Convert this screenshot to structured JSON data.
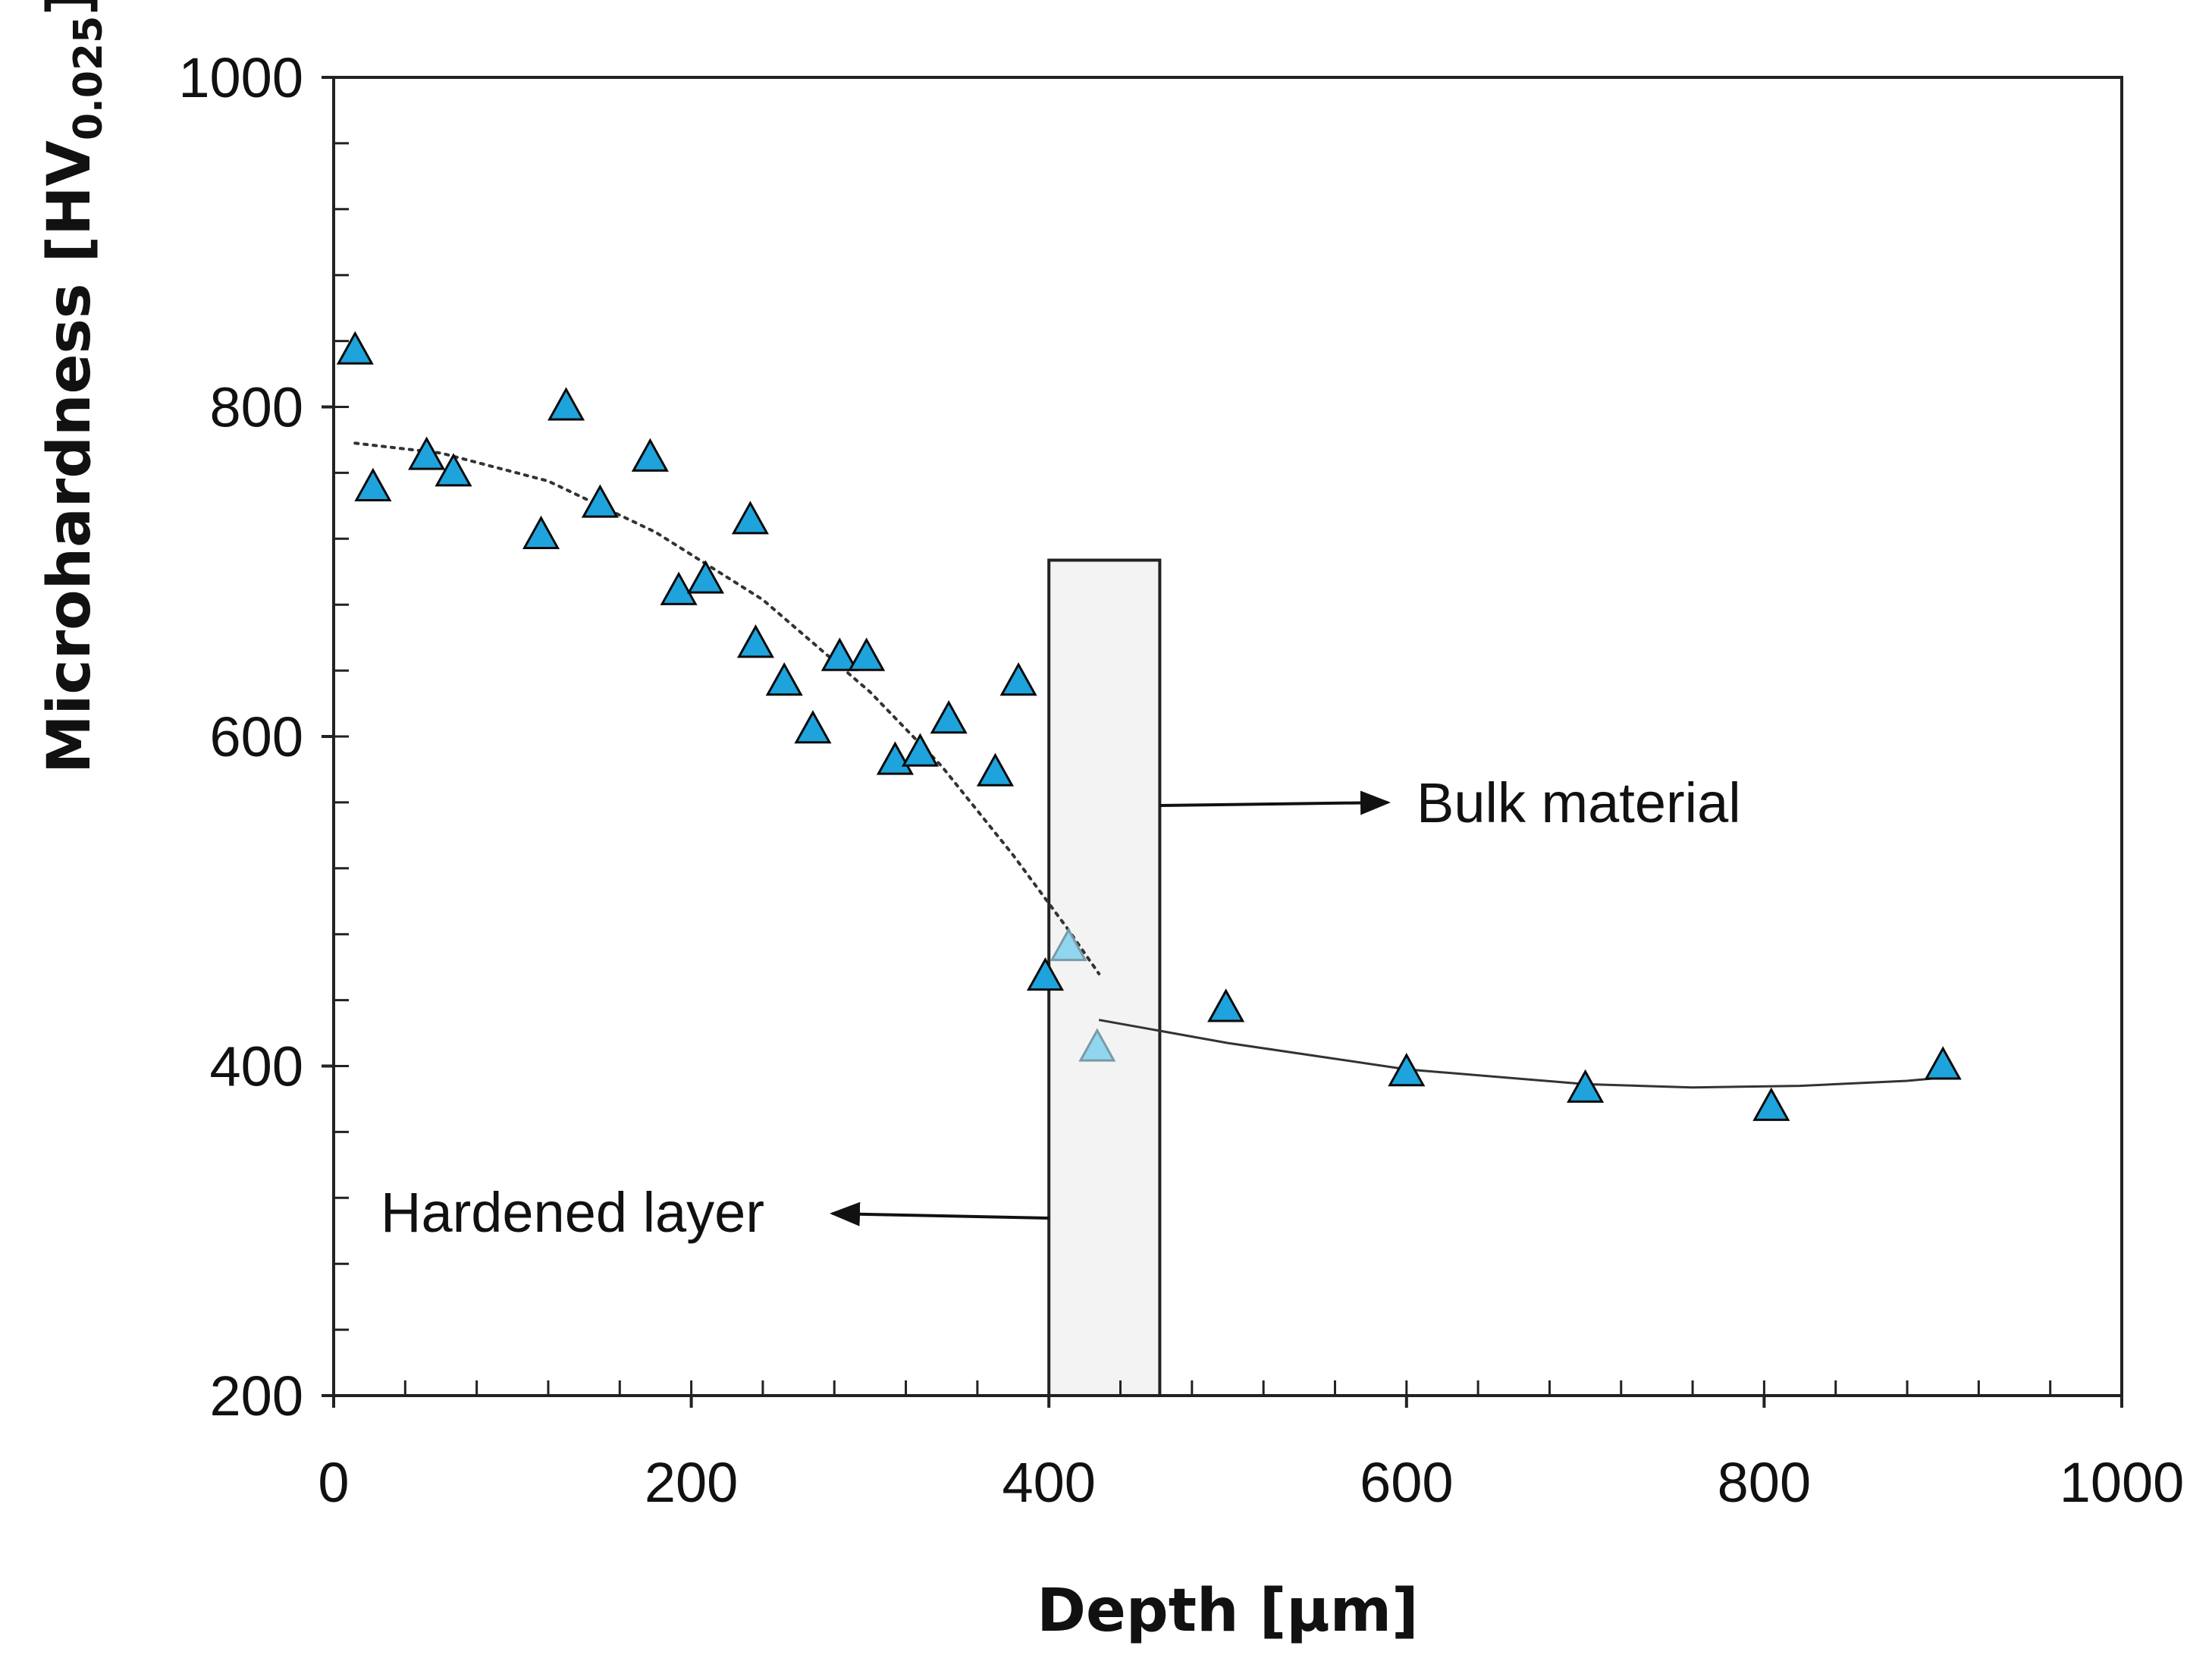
{
  "chart_data": {
    "type": "scatter",
    "title": "",
    "xlabel": "Depth [μm]",
    "ylabel_main": "Microhardness [HV",
    "ylabel_sub": "0.025",
    "ylabel_end": "]",
    "xlim": [
      0,
      1000
    ],
    "ylim": [
      200,
      1000
    ],
    "x_ticks": [
      0,
      200,
      400,
      600,
      800,
      1000
    ],
    "y_ticks": [
      200,
      400,
      600,
      800,
      1000
    ],
    "x_tick_labels": [
      "0",
      "200",
      "400",
      "600",
      "800",
      "1000"
    ],
    "y_tick_labels": [
      "200",
      "400",
      "600",
      "800",
      "1000"
    ],
    "x_minor_step": 40,
    "y_minor_step": 40,
    "grid": false,
    "colors": {
      "marker_fill": "#1ea3dc",
      "marker_fill_light": "#8fd6ee",
      "marker_stroke": "#0a0a0a",
      "box_fill": "#f3f3f3",
      "axis": "#222222"
    },
    "series": [
      {
        "name": "Microhardness",
        "marker": "triangle",
        "points": [
          {
            "x": 12,
            "y": 834
          },
          {
            "x": 22,
            "y": 751
          },
          {
            "x": 52,
            "y": 770
          },
          {
            "x": 67,
            "y": 760
          },
          {
            "x": 116,
            "y": 722
          },
          {
            "x": 130,
            "y": 800
          },
          {
            "x": 149,
            "y": 741
          },
          {
            "x": 177,
            "y": 769
          },
          {
            "x": 193,
            "y": 688
          },
          {
            "x": 208,
            "y": 695
          },
          {
            "x": 233,
            "y": 731
          },
          {
            "x": 236,
            "y": 656
          },
          {
            "x": 252,
            "y": 633
          },
          {
            "x": 268,
            "y": 604
          },
          {
            "x": 283,
            "y": 648
          },
          {
            "x": 298,
            "y": 648
          },
          {
            "x": 314,
            "y": 585
          },
          {
            "x": 328,
            "y": 590
          },
          {
            "x": 344,
            "y": 610
          },
          {
            "x": 370,
            "y": 578
          },
          {
            "x": 383,
            "y": 633
          },
          {
            "x": 398,
            "y": 454
          },
          {
            "x": 411,
            "y": 472,
            "faded": true
          },
          {
            "x": 427,
            "y": 411,
            "faded": true
          },
          {
            "x": 499,
            "y": 435
          },
          {
            "x": 600,
            "y": 396
          },
          {
            "x": 700,
            "y": 386
          },
          {
            "x": 804,
            "y": 375
          },
          {
            "x": 900,
            "y": 400
          }
        ]
      }
    ],
    "trend_lines": [
      {
        "name": "hardened-layer-trend",
        "style": "dotted",
        "points": [
          [
            12,
            778
          ],
          [
            60,
            772
          ],
          [
            120,
            755
          ],
          [
            180,
            724
          ],
          [
            240,
            683
          ],
          [
            300,
            627
          ],
          [
            340,
            582
          ],
          [
            380,
            528
          ],
          [
            410,
            484
          ],
          [
            428,
            456
          ]
        ]
      },
      {
        "name": "bulk-material-trend",
        "style": "solid",
        "points": [
          [
            428,
            428
          ],
          [
            500,
            414
          ],
          [
            600,
            398
          ],
          [
            700,
            389
          ],
          [
            760,
            387
          ],
          [
            820,
            388
          ],
          [
            880,
            391
          ],
          [
            900,
            393
          ]
        ]
      }
    ],
    "transition_zone": {
      "x_from": 400,
      "x_to": 462,
      "y_from": 200,
      "y_to": 707
    },
    "annotations": [
      {
        "text": "Bulk material",
        "arrow": "right"
      },
      {
        "text": "Hardened layer",
        "arrow": "left"
      }
    ]
  }
}
